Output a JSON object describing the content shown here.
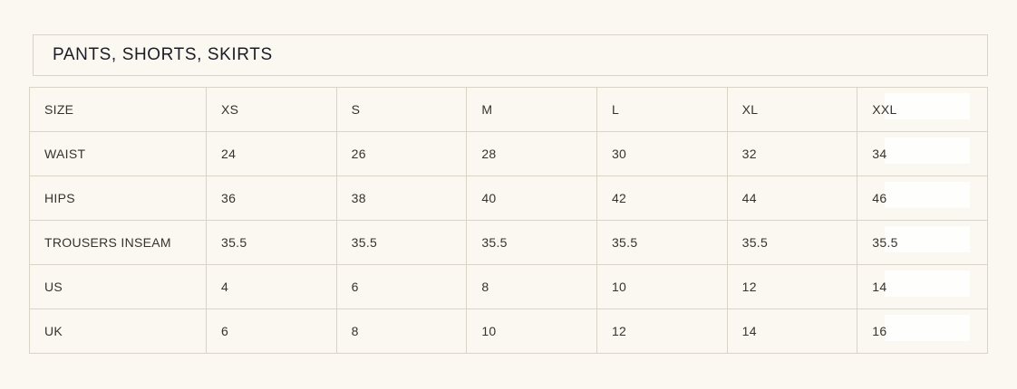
{
  "colors": {
    "background": "#faf8f1",
    "border": "#d9d4c7",
    "title_text": "#1c1c26",
    "cell_text": "#34332e",
    "highlight": "#fefefc"
  },
  "title": {
    "label": "PANTS, SHORTS, SKIRTS"
  },
  "size_table": {
    "header": {
      "label": "SIZE",
      "values": [
        "XS",
        "S",
        "M",
        "L",
        "XL",
        "XXL"
      ]
    },
    "rows": [
      {
        "label": "WAIST",
        "values": [
          "24",
          "26",
          "28",
          "30",
          "32",
          "34"
        ]
      },
      {
        "label": "HIPS",
        "values": [
          "36",
          "38",
          "40",
          "42",
          "44",
          "46"
        ]
      },
      {
        "label": "TROUSERS INSEAM",
        "values": [
          "35.5",
          "35.5",
          "35.5",
          "35.5",
          "35.5",
          "35.5"
        ]
      },
      {
        "label": "US",
        "values": [
          "4",
          "6",
          "8",
          "10",
          "12",
          "14"
        ]
      },
      {
        "label": "UK",
        "values": [
          "6",
          "8",
          "10",
          "12",
          "14",
          "16"
        ]
      }
    ]
  }
}
